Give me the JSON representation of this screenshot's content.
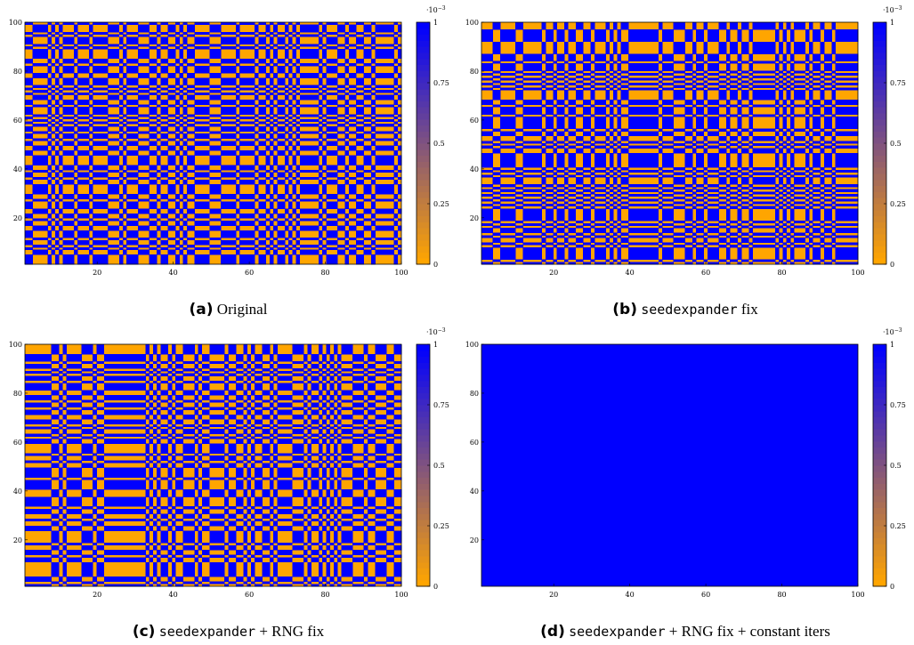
{
  "chart_data": [
    {
      "type": "heatmap",
      "caption": {
        "tag": "(a)",
        "code": "",
        "text": "Original"
      },
      "pattern": "stripes",
      "row_seed": 11,
      "col_seed": 23,
      "density": 0.5,
      "xlim": [
        1,
        100
      ],
      "ylim": [
        1,
        100
      ],
      "xticks": [
        20,
        40,
        60,
        80,
        100
      ],
      "yticks": [
        20,
        40,
        60,
        80,
        100
      ],
      "colorbar": {
        "range": [
          0,
          1
        ],
        "ticks": [
          "0",
          "0.25",
          "0.5",
          "0.75",
          "1"
        ],
        "exponent": "·10",
        "exponent_power": "−3"
      },
      "colors": {
        "low": "#ffa500",
        "high": "#0000ff"
      }
    },
    {
      "type": "heatmap",
      "caption": {
        "tag": "(b)",
        "code": "seedexpander",
        "text": " fix"
      },
      "pattern": "stripes",
      "row_seed": 37,
      "col_seed": 53,
      "density": 0.5,
      "xlim": [
        1,
        100
      ],
      "ylim": [
        1,
        100
      ],
      "xticks": [
        20,
        40,
        60,
        80,
        100
      ],
      "yticks": [
        20,
        40,
        60,
        80,
        100
      ],
      "colorbar": {
        "range": [
          0,
          1
        ],
        "ticks": [
          "0",
          "0.25",
          "0.5",
          "0.75",
          "1"
        ],
        "exponent": "·10",
        "exponent_power": "−3"
      },
      "colors": {
        "low": "#ffa500",
        "high": "#0000ff"
      }
    },
    {
      "type": "heatmap",
      "caption": {
        "tag": "(c)",
        "code": "seedexpander",
        "text": " + RNG fix"
      },
      "pattern": "stripes",
      "row_seed": 71,
      "col_seed": 97,
      "density": 0.48,
      "xlim": [
        1,
        100
      ],
      "ylim": [
        1,
        100
      ],
      "xticks": [
        20,
        40,
        60,
        80,
        100
      ],
      "yticks": [
        20,
        40,
        60,
        80,
        100
      ],
      "colorbar": {
        "range": [
          0,
          1
        ],
        "ticks": [
          "0",
          "0.25",
          "0.5",
          "0.75",
          "1"
        ],
        "exponent": "·10",
        "exponent_power": "−3"
      },
      "colors": {
        "low": "#ffa500",
        "high": "#0000ff"
      }
    },
    {
      "type": "heatmap",
      "caption": {
        "tag": "(d)",
        "code": "seedexpander",
        "text": " + RNG fix + constant iters"
      },
      "pattern": "uniform",
      "value": 1,
      "xlim": [
        1,
        100
      ],
      "ylim": [
        1,
        100
      ],
      "xticks": [
        20,
        40,
        60,
        80,
        100
      ],
      "yticks": [
        20,
        40,
        60,
        80,
        100
      ],
      "colorbar": {
        "range": [
          0,
          1
        ],
        "ticks": [
          "0",
          "0.25",
          "0.5",
          "0.75",
          "1"
        ],
        "exponent": "·10",
        "exponent_power": "−3"
      },
      "colors": {
        "low": "#ffa500",
        "high": "#0000ff"
      }
    }
  ]
}
